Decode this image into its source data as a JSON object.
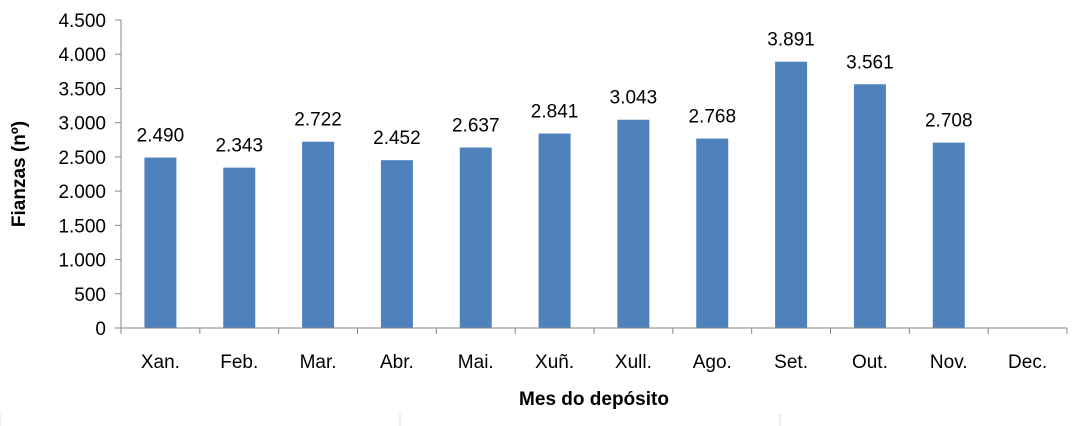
{
  "chart_data": {
    "type": "bar",
    "categories": [
      "Xan.",
      "Feb.",
      "Mar.",
      "Abr.",
      "Mai.",
      "Xuñ.",
      "Xull.",
      "Ago.",
      "Set.",
      "Out.",
      "Nov.",
      "Dec."
    ],
    "values": [
      2490,
      2343,
      2722,
      2452,
      2637,
      2841,
      3043,
      2768,
      3891,
      3561,
      2708,
      null
    ],
    "value_labels": [
      "2.490",
      "2.343",
      "2.722",
      "2.452",
      "2.637",
      "2.841",
      "3.043",
      "2.768",
      "3.891",
      "3.561",
      "2.708",
      ""
    ],
    "title": "",
    "xlabel": "Mes do depósito",
    "ylabel": "Fianzas (nº)",
    "ylim": [
      0,
      4500
    ],
    "yticks": [
      0,
      500,
      1000,
      1500,
      2000,
      2500,
      3000,
      3500,
      4000,
      4500
    ],
    "ytick_labels": [
      "0",
      "500",
      "1.000",
      "1.500",
      "2.000",
      "2.500",
      "3.000",
      "3.500",
      "4.000",
      "4.500"
    ],
    "grid": false,
    "legend": "none",
    "bar_color": "#4f81bd"
  }
}
